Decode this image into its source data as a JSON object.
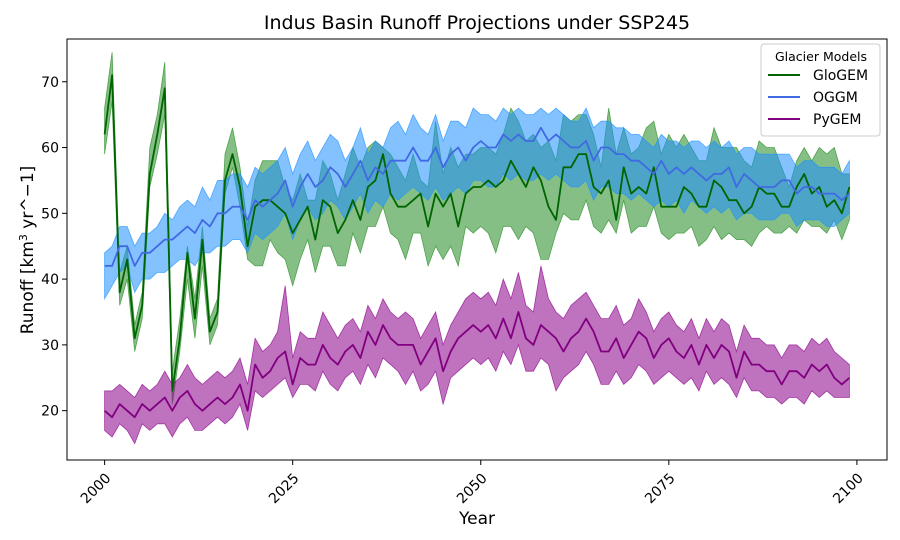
{
  "chart_data": {
    "type": "line",
    "title": "Indus Basin Runoff Projections under SSP245",
    "xlabel": "Year",
    "ylabel": {
      "main": "Runoff [km",
      "sup": "3",
      "rest": " yr^−1]"
    },
    "xlim": [
      1995,
      2104
    ],
    "ylim": [
      12.5,
      76.5
    ],
    "xticks": [
      2000,
      2025,
      2050,
      2075,
      2100
    ],
    "yticks": [
      20,
      30,
      40,
      50,
      60,
      70
    ],
    "grid": false,
    "legend": {
      "title": "Glacier Models",
      "position": "top-right"
    },
    "series": [
      {
        "name": "GloGEM",
        "color": "#006400",
        "fill": "#228b22",
        "x": [
          2000,
          2001,
          2002,
          2003,
          2004,
          2005,
          2006,
          2007,
          2008,
          2009,
          2010,
          2011,
          2012,
          2013,
          2014,
          2015,
          2016,
          2017,
          2018,
          2019,
          2020,
          2021,
          2022,
          2023,
          2024,
          2025,
          2026,
          2027,
          2028,
          2029,
          2030,
          2031,
          2032,
          2033,
          2034,
          2035,
          2036,
          2037,
          2038,
          2039,
          2040,
          2041,
          2042,
          2043,
          2044,
          2045,
          2046,
          2047,
          2048,
          2049,
          2050,
          2051,
          2052,
          2053,
          2054,
          2055,
          2056,
          2057,
          2058,
          2059,
          2060,
          2061,
          2062,
          2063,
          2064,
          2065,
          2066,
          2067,
          2068,
          2069,
          2070,
          2071,
          2072,
          2073,
          2074,
          2075,
          2076,
          2077,
          2078,
          2079,
          2080,
          2081,
          2082,
          2083,
          2084,
          2085,
          2086,
          2087,
          2088,
          2089,
          2090,
          2091,
          2092,
          2093,
          2094,
          2095,
          2096,
          2097,
          2098,
          2099
        ],
        "mean": [
          62,
          71,
          38,
          43,
          31,
          36,
          56,
          62,
          69,
          23,
          31,
          44,
          34,
          46,
          32,
          35,
          55,
          59,
          54,
          45,
          51,
          52,
          52,
          51,
          50,
          47,
          49,
          51,
          46,
          52,
          51,
          47,
          49,
          52,
          49,
          54,
          55,
          59,
          53,
          51,
          51,
          52,
          53,
          48,
          53,
          51,
          53,
          48,
          53,
          54,
          54,
          55,
          54,
          55,
          58,
          56,
          54,
          57,
          55,
          51,
          49,
          57,
          57,
          59,
          59,
          54,
          53,
          55,
          49,
          57,
          53,
          54,
          53,
          57,
          51,
          51,
          51,
          54,
          53,
          51,
          51,
          55,
          54,
          52,
          52,
          50,
          51,
          54,
          53,
          53,
          51,
          51,
          54,
          56,
          53,
          54,
          51,
          52,
          50,
          54
        ],
        "lower": [
          59,
          67,
          36,
          40,
          29,
          34,
          54,
          59,
          65,
          21,
          29,
          40,
          31,
          42,
          30,
          33,
          53,
          57,
          51,
          43,
          42,
          42,
          46,
          44,
          43,
          39,
          43,
          46,
          41,
          45,
          45,
          42,
          42,
          47,
          44,
          48,
          48,
          51,
          47,
          46,
          43,
          47,
          47,
          42,
          45,
          43,
          45,
          42,
          48,
          47,
          48,
          47,
          44,
          48,
          48,
          46,
          48,
          47,
          43,
          43,
          47,
          50,
          49,
          49,
          52,
          48,
          47,
          49,
          47,
          52,
          47,
          48,
          48,
          51,
          47,
          46,
          47,
          47,
          48,
          45,
          46,
          48,
          46,
          47,
          46,
          46,
          45,
          47,
          48,
          47,
          47,
          48,
          47,
          49,
          48,
          48,
          47,
          49,
          46,
          49
        ],
        "upper": [
          66,
          74.5,
          41,
          45,
          33,
          38,
          60,
          65,
          73,
          26,
          34,
          45,
          37,
          48,
          34,
          37,
          59,
          63,
          57,
          48,
          55,
          58,
          58,
          58,
          54,
          52,
          56,
          52,
          52,
          58,
          56,
          52,
          56,
          60,
          57,
          60,
          61,
          60,
          59,
          57,
          55,
          59,
          55,
          54,
          64,
          56,
          60,
          57,
          59,
          59,
          60,
          60,
          59,
          62,
          66,
          64,
          61,
          62,
          60,
          61,
          58,
          65,
          64,
          65,
          65,
          62,
          57,
          66,
          59,
          63,
          59,
          60,
          63,
          64,
          59,
          62,
          60,
          62,
          60,
          58,
          58,
          63,
          60,
          60,
          60,
          58,
          57,
          61,
          60,
          60,
          57,
          54,
          58,
          60,
          58,
          60,
          59,
          60,
          56,
          56
        ]
      },
      {
        "name": "OGGM",
        "color": "#4169e1",
        "fill": "#1e90ff",
        "x": [
          2000,
          2001,
          2002,
          2003,
          2004,
          2005,
          2006,
          2007,
          2008,
          2009,
          2010,
          2011,
          2012,
          2013,
          2014,
          2015,
          2016,
          2017,
          2018,
          2019,
          2020,
          2021,
          2022,
          2023,
          2024,
          2025,
          2026,
          2027,
          2028,
          2029,
          2030,
          2031,
          2032,
          2033,
          2034,
          2035,
          2036,
          2037,
          2038,
          2039,
          2040,
          2041,
          2042,
          2043,
          2044,
          2045,
          2046,
          2047,
          2048,
          2049,
          2050,
          2051,
          2052,
          2053,
          2054,
          2055,
          2056,
          2057,
          2058,
          2059,
          2060,
          2061,
          2062,
          2063,
          2064,
          2065,
          2066,
          2067,
          2068,
          2069,
          2070,
          2071,
          2072,
          2073,
          2074,
          2075,
          2076,
          2077,
          2078,
          2079,
          2080,
          2081,
          2082,
          2083,
          2084,
          2085,
          2086,
          2087,
          2088,
          2089,
          2090,
          2091,
          2092,
          2093,
          2094,
          2095,
          2096,
          2097,
          2098,
          2099
        ],
        "mean": [
          42,
          42,
          45,
          45,
          42,
          44,
          44,
          45,
          46,
          46,
          47,
          48,
          47,
          49,
          48,
          50,
          50,
          51,
          51,
          49,
          52,
          51,
          52,
          53,
          55,
          51,
          54,
          56,
          54,
          55,
          57,
          56,
          54,
          56,
          58,
          55,
          57,
          56,
          58,
          58,
          58,
          60,
          58,
          58,
          60,
          57,
          59,
          60,
          58,
          60,
          61,
          60,
          60,
          62,
          61,
          62,
          61,
          61,
          63,
          61,
          62,
          61,
          60,
          60,
          61,
          58,
          60,
          60,
          59,
          59,
          58,
          58,
          57,
          56,
          58,
          56,
          57,
          56,
          57,
          56,
          55,
          56,
          56,
          57,
          54,
          56,
          55,
          54,
          54,
          54,
          55,
          55,
          53,
          54,
          54,
          53,
          53,
          53,
          52,
          53
        ],
        "lower": [
          37,
          39,
          41,
          42,
          38,
          40,
          40,
          41,
          41,
          42,
          43,
          43,
          42,
          44,
          44,
          45,
          45,
          46,
          46,
          44,
          47,
          46,
          47,
          48,
          50,
          46,
          49,
          51,
          49,
          50,
          52,
          51,
          49,
          51,
          53,
          50,
          52,
          51,
          53,
          52,
          53,
          54,
          53,
          52,
          54,
          52,
          53,
          54,
          53,
          55,
          55,
          54,
          54,
          56,
          55,
          56,
          55,
          55,
          56,
          55,
          56,
          55,
          54,
          54,
          55,
          52,
          54,
          54,
          53,
          53,
          52,
          53,
          52,
          51,
          52,
          51,
          52,
          50,
          52,
          51,
          50,
          51,
          50,
          51,
          49,
          50,
          50,
          49,
          49,
          49,
          50,
          50,
          48,
          49,
          49,
          49,
          48,
          48,
          49,
          50
        ],
        "upper": [
          44,
          45,
          48,
          48,
          45,
          47,
          47,
          48,
          50,
          49,
          51,
          52,
          51,
          54,
          52,
          55,
          55,
          56,
          56,
          54,
          57,
          56,
          57,
          58,
          60,
          56,
          59,
          61,
          58,
          60,
          62,
          61,
          58,
          60,
          63,
          59,
          61,
          60,
          63,
          64,
          62,
          65,
          63,
          62,
          65,
          61,
          64,
          64,
          63,
          66,
          65,
          65,
          64,
          66,
          65,
          66,
          65,
          65,
          66,
          65,
          66,
          65,
          64,
          64,
          66,
          63,
          64,
          64,
          63,
          63,
          62,
          62,
          61,
          60,
          62,
          61,
          61,
          60,
          61,
          61,
          60,
          61,
          60,
          61,
          59,
          60,
          60,
          59,
          59,
          59,
          59,
          59,
          57,
          58,
          58,
          57,
          57,
          57,
          56,
          58
        ]
      },
      {
        "name": "PyGEM",
        "color": "#800080",
        "fill": "#8b008b",
        "x": [
          2000,
          2001,
          2002,
          2003,
          2004,
          2005,
          2006,
          2007,
          2008,
          2009,
          2010,
          2011,
          2012,
          2013,
          2014,
          2015,
          2016,
          2017,
          2018,
          2019,
          2020,
          2021,
          2022,
          2023,
          2024,
          2025,
          2026,
          2027,
          2028,
          2029,
          2030,
          2031,
          2032,
          2033,
          2034,
          2035,
          2036,
          2037,
          2038,
          2039,
          2040,
          2041,
          2042,
          2043,
          2044,
          2045,
          2046,
          2047,
          2048,
          2049,
          2050,
          2051,
          2052,
          2053,
          2054,
          2055,
          2056,
          2057,
          2058,
          2059,
          2060,
          2061,
          2062,
          2063,
          2064,
          2065,
          2066,
          2067,
          2068,
          2069,
          2070,
          2071,
          2072,
          2073,
          2074,
          2075,
          2076,
          2077,
          2078,
          2079,
          2080,
          2081,
          2082,
          2083,
          2084,
          2085,
          2086,
          2087,
          2088,
          2089,
          2090,
          2091,
          2092,
          2093,
          2094,
          2095,
          2096,
          2097,
          2098,
          2099
        ],
        "mean": [
          20,
          19,
          21,
          20,
          19,
          21,
          20,
          21,
          22,
          20,
          22,
          23,
          21,
          20,
          21,
          22,
          21,
          22,
          24,
          20,
          27,
          25,
          26,
          28,
          29,
          24,
          28,
          27,
          27,
          30,
          28,
          27,
          29,
          30,
          28,
          32,
          30,
          33,
          31,
          30,
          30,
          30,
          27,
          29,
          31,
          26,
          29,
          31,
          32,
          33,
          32,
          33,
          31,
          34,
          31,
          35,
          31,
          30,
          33,
          32,
          31,
          29,
          31,
          32,
          34,
          32,
          29,
          29,
          31,
          28,
          30,
          32,
          31,
          28,
          30,
          31,
          29,
          28,
          30,
          27,
          30,
          28,
          30,
          29,
          25,
          29,
          27,
          27,
          26,
          26,
          24,
          26,
          26,
          25,
          27,
          26,
          27,
          25,
          24,
          25
        ],
        "lower": [
          17,
          16,
          18,
          17,
          15,
          18,
          17,
          18,
          18,
          16,
          18,
          19,
          17,
          17,
          18,
          19,
          18,
          19,
          21,
          17,
          23,
          22,
          23,
          24,
          25,
          22,
          24,
          24,
          23,
          26,
          24,
          23,
          25,
          26,
          24,
          27,
          25,
          28,
          27,
          26,
          24,
          26,
          23,
          24,
          26,
          21,
          25,
          26,
          27,
          28,
          27,
          28,
          26,
          29,
          27,
          30,
          26,
          26,
          28,
          27,
          23,
          25,
          26,
          27,
          29,
          27,
          24,
          24,
          26,
          24,
          25,
          27,
          26,
          24,
          25,
          26,
          25,
          24,
          25,
          23,
          26,
          24,
          25,
          24,
          22,
          25,
          23,
          23,
          22,
          22,
          21,
          22,
          22,
          21,
          23,
          22,
          23,
          22,
          22,
          22
        ],
        "upper": [
          23,
          23,
          24,
          23,
          22,
          24,
          23,
          24,
          26,
          24,
          25,
          27,
          25,
          24,
          25,
          26,
          25,
          26,
          28,
          24,
          31,
          29,
          30,
          32,
          39,
          28,
          32,
          31,
          31,
          35,
          33,
          31,
          33,
          34,
          32,
          36,
          34,
          37,
          35,
          34,
          35,
          34,
          31,
          33,
          35,
          30,
          33,
          35,
          37,
          38,
          37,
          38,
          36,
          40,
          37,
          41,
          36,
          35,
          42,
          37,
          35,
          34,
          36,
          37,
          38,
          36,
          34,
          34,
          36,
          33,
          34,
          37,
          35,
          32,
          34,
          35,
          33,
          32,
          34,
          31,
          34,
          32,
          34,
          33,
          29,
          33,
          31,
          31,
          30,
          30,
          28,
          30,
          30,
          29,
          31,
          30,
          31,
          29,
          28,
          27
        ]
      }
    ]
  }
}
